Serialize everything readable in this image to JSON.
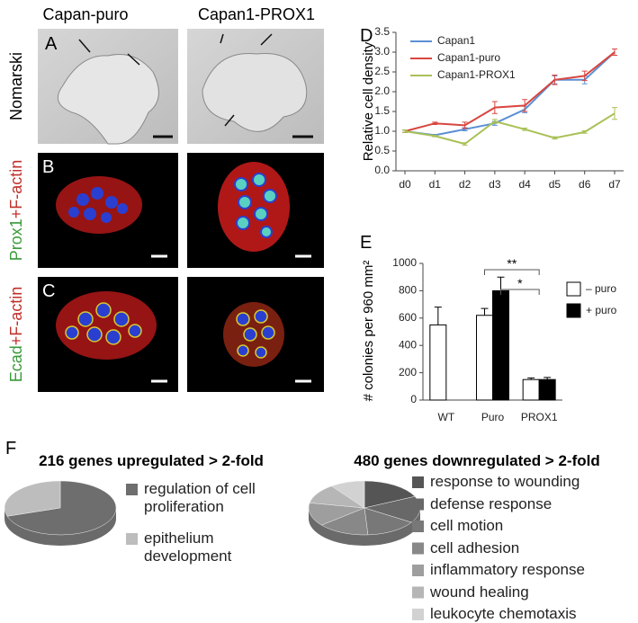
{
  "micrographs": {
    "columns": [
      "Capan-puro",
      "Capan1-PROX1"
    ],
    "rows": [
      {
        "panel": "A",
        "label": "Nomarski"
      },
      {
        "panel": "B",
        "stain": "Prox1",
        "counterstain": "+F-actin"
      },
      {
        "panel": "C",
        "stain": "Ecad",
        "counterstain": "+F-actin"
      }
    ]
  },
  "chart_data": [
    {
      "type": "line",
      "panel": "D",
      "ylabel": "Relative cell density",
      "categories": [
        "d0",
        "d1",
        "d2",
        "d3",
        "d4",
        "d5",
        "d6",
        "d7"
      ],
      "series": [
        {
          "name": "Capan1",
          "color": "#5b8fd4",
          "values": [
            1.0,
            0.9,
            1.05,
            1.2,
            1.55,
            2.3,
            2.3,
            3.0
          ],
          "errors": [
            0.03,
            0.02,
            0.04,
            0.05,
            0.08,
            0.1,
            0.1,
            0.08
          ]
        },
        {
          "name": "Capan1-puro",
          "color": "#d9453f",
          "values": [
            1.0,
            1.2,
            1.15,
            1.6,
            1.65,
            2.3,
            2.4,
            3.0
          ],
          "errors": [
            0.03,
            0.03,
            0.08,
            0.15,
            0.15,
            0.12,
            0.12,
            0.08
          ]
        },
        {
          "name": "Capan1-PROX1",
          "color": "#a9c157",
          "values": [
            1.0,
            0.88,
            0.68,
            1.25,
            1.05,
            0.83,
            0.98,
            1.45
          ],
          "errors": [
            0.03,
            0.02,
            0.03,
            0.05,
            0.03,
            0.03,
            0.03,
            0.15
          ]
        }
      ],
      "ylim": [
        0,
        3.5
      ],
      "yticks": [
        {
          "value": 0,
          "label": "0.0"
        },
        0.5,
        {
          "value": 1,
          "label": "1.0"
        },
        1.5,
        {
          "value": 2,
          "label": "2.0"
        },
        2.5,
        {
          "value": 3,
          "label": "3.0"
        },
        3.5
      ]
    },
    {
      "type": "bar",
      "panel": "E",
      "ylabel": "# colonies per 960 mm²",
      "categories": [
        "WT",
        "Puro",
        "PROX1"
      ],
      "series": [
        {
          "name": "– puro",
          "color": "#ffffff",
          "values": [
            550,
            620,
            150
          ],
          "errors": [
            130,
            50,
            12
          ]
        },
        {
          "name": "+ puro",
          "color": "#000000",
          "values": [
            null,
            800,
            150
          ],
          "errors": [
            null,
            100,
            15
          ]
        }
      ],
      "annotations": [
        "**",
        "*"
      ],
      "ylim": [
        0,
        1000
      ],
      "yticks": [
        0,
        200,
        400,
        600,
        800,
        1000
      ]
    },
    {
      "type": "pie",
      "panel": "F",
      "title": "216 genes upregulated > 2-fold",
      "categories": [
        "regulation of cell proliferation",
        "epithelium development"
      ],
      "values": [
        70,
        30
      ],
      "colors": [
        "#6e6e6e",
        "#bdbdbd"
      ]
    },
    {
      "type": "pie",
      "title": "480 genes downregulated > 2-fold",
      "categories": [
        "response to wounding",
        "defense response",
        "cell motion",
        "cell adhesion",
        "inflammatory response",
        "wound healing",
        "leukocyte chemotaxis"
      ],
      "values": [
        18,
        16,
        15,
        15,
        14,
        12,
        10
      ],
      "colors": [
        "#555555",
        "#686868",
        "#787878",
        "#888888",
        "#9e9e9e",
        "#b6b6b6",
        "#d2d2d2"
      ]
    }
  ]
}
